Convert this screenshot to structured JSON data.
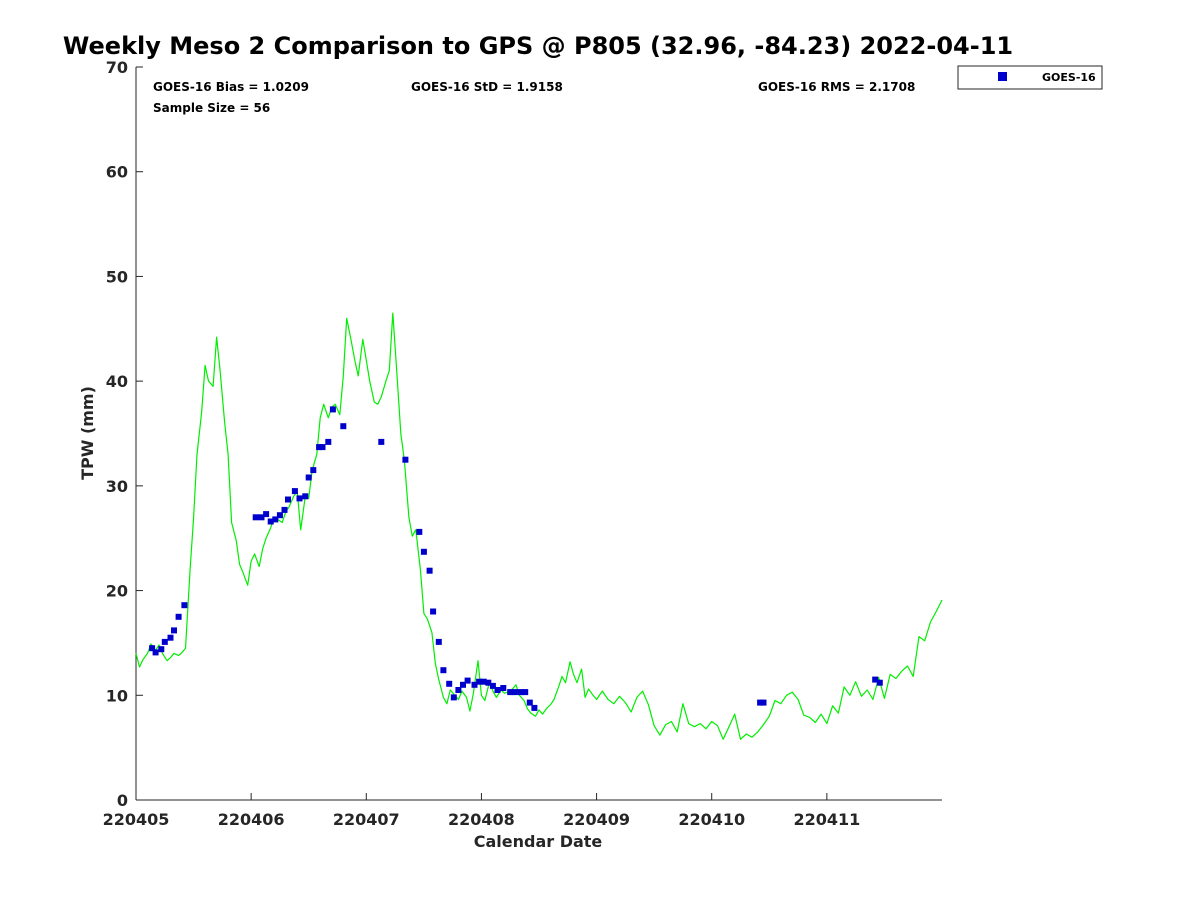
{
  "chart_data": {
    "type": "scatter",
    "title": "Weekly Meso 2 Comparison to GPS @ P805 (32.96, -84.23) 2022-04-11",
    "xlabel": "Calendar Date",
    "ylabel": "TPW (mm)",
    "xlim": [
      0,
      7
    ],
    "ylim": [
      0,
      70
    ],
    "xticks": [
      {
        "value": 0,
        "label": "220405"
      },
      {
        "value": 1,
        "label": "220406"
      },
      {
        "value": 2,
        "label": "220407"
      },
      {
        "value": 3,
        "label": "220408"
      },
      {
        "value": 4,
        "label": "220409"
      },
      {
        "value": 5,
        "label": "220410"
      },
      {
        "value": 6,
        "label": "220411"
      }
    ],
    "yticks": [
      0,
      10,
      20,
      30,
      40,
      50,
      60,
      70
    ],
    "legend": {
      "position": "outside-top-right",
      "entries": [
        "GOES-16"
      ]
    },
    "stats": {
      "bias": "GOES-16 Bias = 1.0209",
      "std": "GOES-16 StD = 1.9158",
      "rms": "GOES-16 RMS = 2.1708",
      "sample": "Sample Size = 56"
    },
    "series": [
      {
        "name": "GPS",
        "kind": "line",
        "color": "#00ee00",
        "x": [
          0.0,
          0.03,
          0.06,
          0.1,
          0.13,
          0.17,
          0.2,
          0.23,
          0.27,
          0.3,
          0.33,
          0.37,
          0.4,
          0.43,
          0.47,
          0.5,
          0.53,
          0.57,
          0.6,
          0.63,
          0.67,
          0.7,
          0.73,
          0.77,
          0.8,
          0.83,
          0.87,
          0.9,
          0.93,
          0.97,
          1.0,
          1.03,
          1.07,
          1.1,
          1.13,
          1.17,
          1.2,
          1.23,
          1.27,
          1.3,
          1.33,
          1.37,
          1.4,
          1.43,
          1.47,
          1.5,
          1.53,
          1.57,
          1.6,
          1.63,
          1.67,
          1.7,
          1.73,
          1.77,
          1.8,
          1.83,
          1.87,
          1.9,
          1.93,
          1.97,
          2.0,
          2.03,
          2.07,
          2.1,
          2.13,
          2.17,
          2.2,
          2.23,
          2.27,
          2.3,
          2.33,
          2.37,
          2.4,
          2.43,
          2.47,
          2.5,
          2.53,
          2.57,
          2.6,
          2.63,
          2.67,
          2.7,
          2.73,
          2.77,
          2.8,
          2.83,
          2.87,
          2.9,
          2.93,
          2.97,
          3.0,
          3.03,
          3.07,
          3.1,
          3.13,
          3.17,
          3.2,
          3.23,
          3.27,
          3.3,
          3.33,
          3.37,
          3.4,
          3.43,
          3.47,
          3.5,
          3.53,
          3.57,
          3.6,
          3.63,
          3.67,
          3.7,
          3.73,
          3.77,
          3.8,
          3.83,
          3.87,
          3.9,
          3.93,
          3.97,
          4.0,
          4.05,
          4.1,
          4.15,
          4.2,
          4.25,
          4.3,
          4.35,
          4.4,
          4.45,
          4.5,
          4.55,
          4.6,
          4.65,
          4.7,
          4.75,
          4.8,
          4.85,
          4.9,
          4.95,
          5.0,
          5.05,
          5.1,
          5.15,
          5.2,
          5.25,
          5.3,
          5.35,
          5.4,
          5.45,
          5.5,
          5.55,
          5.6,
          5.65,
          5.7,
          5.75,
          5.8,
          5.85,
          5.9,
          5.95,
          6.0,
          6.05,
          6.1,
          6.15,
          6.2,
          6.25,
          6.3,
          6.35,
          6.4,
          6.45,
          6.5,
          6.55,
          6.6,
          6.65,
          6.7,
          6.75,
          6.8,
          6.85,
          6.9,
          6.95,
          7.0
        ],
        "y": [
          14.0,
          12.7,
          13.4,
          14.0,
          14.9,
          14.3,
          14.8,
          14.0,
          13.3,
          13.6,
          14.0,
          13.8,
          14.1,
          14.5,
          22.0,
          27.0,
          33.0,
          37.0,
          41.5,
          40.0,
          39.5,
          44.2,
          41.0,
          36.0,
          33.0,
          26.5,
          24.8,
          22.5,
          21.7,
          20.5,
          22.8,
          23.5,
          22.3,
          24.0,
          25.0,
          26.0,
          27.0,
          26.8,
          26.5,
          27.5,
          28.0,
          29.0,
          29.5,
          25.8,
          29.0,
          28.8,
          31.5,
          33.0,
          36.5,
          37.8,
          36.5,
          37.5,
          37.8,
          36.8,
          40.5,
          46.0,
          43.8,
          42.0,
          40.5,
          44.0,
          42.0,
          40.0,
          38.0,
          37.8,
          38.5,
          40.0,
          41.0,
          46.5,
          40.0,
          35.0,
          32.5,
          27.0,
          25.2,
          25.8,
          22.0,
          17.8,
          17.3,
          16.0,
          13.0,
          11.5,
          9.8,
          9.2,
          10.5,
          10.0,
          9.6,
          10.4,
          9.8,
          8.5,
          10.2,
          13.3,
          10.0,
          9.5,
          11.3,
          10.4,
          9.8,
          10.5,
          10.2,
          10.3,
          10.6,
          11.0,
          10.0,
          9.5,
          8.7,
          8.3,
          8.0,
          8.6,
          8.2,
          8.8,
          9.1,
          9.6,
          10.8,
          11.8,
          11.2,
          13.2,
          12.0,
          11.2,
          12.5,
          9.8,
          10.6,
          10.0,
          9.6,
          10.4,
          9.6,
          9.2,
          9.9,
          9.3,
          8.4,
          9.8,
          10.4,
          9.1,
          7.1,
          6.2,
          7.2,
          7.5,
          6.5,
          9.2,
          7.3,
          7.0,
          7.3,
          6.8,
          7.5,
          7.1,
          5.8,
          7.0,
          8.2,
          5.8,
          6.3,
          6.0,
          6.5,
          7.2,
          8.0,
          9.5,
          9.2,
          10.0,
          10.3,
          9.6,
          8.1,
          7.9,
          7.4,
          8.2,
          7.3,
          9.0,
          8.3,
          10.8,
          10.0,
          11.3,
          9.9,
          10.5,
          9.6,
          11.7,
          9.7,
          12.0,
          11.6,
          12.3,
          12.8,
          11.8,
          15.6,
          15.2,
          17.0,
          18.0,
          19.1
        ]
      },
      {
        "name": "GOES-16",
        "kind": "scatter",
        "color": "#0000cc",
        "x": [
          0.14,
          0.17,
          0.22,
          0.25,
          0.3,
          0.33,
          0.37,
          0.42,
          1.04,
          1.09,
          1.13,
          1.17,
          1.21,
          1.25,
          1.29,
          1.32,
          1.38,
          1.42,
          1.47,
          1.5,
          1.54,
          1.59,
          1.62,
          1.67,
          1.71,
          1.8,
          2.13,
          2.34,
          2.46,
          2.5,
          2.55,
          2.58,
          2.63,
          2.67,
          2.72,
          2.76,
          2.8,
          2.84,
          2.88,
          2.94,
          2.98,
          3.02,
          3.06,
          3.1,
          3.14,
          3.19,
          3.25,
          3.29,
          3.34,
          3.38,
          3.42,
          3.46,
          5.42,
          5.45,
          6.42,
          6.46
        ],
        "y": [
          14.5,
          14.1,
          14.4,
          15.1,
          15.5,
          16.2,
          17.5,
          18.6,
          27.0,
          27.0,
          27.3,
          26.6,
          26.8,
          27.2,
          27.7,
          28.7,
          29.5,
          28.8,
          29.0,
          30.8,
          31.5,
          33.7,
          33.7,
          34.2,
          37.3,
          35.7,
          34.2,
          32.5,
          25.6,
          23.7,
          21.9,
          18.0,
          15.1,
          12.4,
          11.1,
          9.8,
          10.5,
          11.0,
          11.4,
          11.0,
          11.3,
          11.3,
          11.2,
          10.9,
          10.5,
          10.7,
          10.3,
          10.3,
          10.3,
          10.3,
          9.3,
          8.8,
          9.3,
          9.3,
          11.5,
          11.2
        ]
      }
    ]
  }
}
